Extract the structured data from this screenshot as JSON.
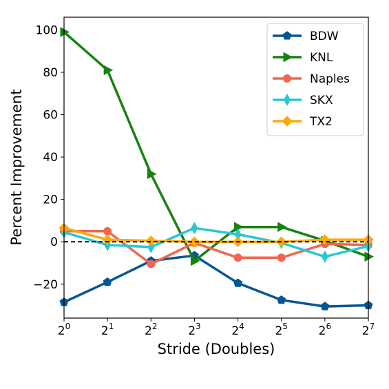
{
  "chart_data": {
    "type": "line",
    "title": "",
    "xlabel": "Stride (Doubles)",
    "ylabel": "Percent Improvement",
    "x": [
      0,
      1,
      2,
      3,
      4,
      5,
      6,
      7
    ],
    "x_tick_labels": [
      {
        "base": "2",
        "exp": "0"
      },
      {
        "base": "2",
        "exp": "1"
      },
      {
        "base": "2",
        "exp": "2"
      },
      {
        "base": "2",
        "exp": "3"
      },
      {
        "base": "2",
        "exp": "4"
      },
      {
        "base": "2",
        "exp": "5"
      },
      {
        "base": "2",
        "exp": "6"
      },
      {
        "base": "2",
        "exp": "7"
      }
    ],
    "xlim": [
      0,
      7
    ],
    "ylim": [
      -36,
      106
    ],
    "y_ticks": [
      -20,
      0,
      20,
      40,
      60,
      80,
      100
    ],
    "y_tick_labels": [
      "−20",
      "0",
      "20",
      "40",
      "60",
      "80",
      "100"
    ],
    "grid": false,
    "legend_position": "top-right",
    "reference_line": {
      "y": 0,
      "style": "dashed",
      "color": "#000000"
    },
    "series": [
      {
        "name": "BDW",
        "color": "#045693",
        "marker": "pentagon",
        "values": [
          -28.5,
          -19,
          -9,
          -6.5,
          -19.5,
          -27.5,
          -30.5,
          -30
        ]
      },
      {
        "name": "KNL",
        "color": "#16820f",
        "marker": "triangle-right",
        "values": [
          99,
          81,
          32,
          -9,
          7,
          7,
          0.5,
          -7
        ]
      },
      {
        "name": "Naples",
        "color": "#f2664f",
        "marker": "circle",
        "values": [
          5,
          5,
          -10.5,
          -0.5,
          -7.5,
          -7.5,
          -1,
          -1.5
        ]
      },
      {
        "name": "SKX",
        "color": "#29c7d1",
        "marker": "thin-diamond",
        "values": [
          4.5,
          -1.5,
          -2.5,
          6.5,
          3.5,
          -0.5,
          -7,
          -2
        ]
      },
      {
        "name": "TX2",
        "color": "#ffa80a",
        "marker": "diamond",
        "values": [
          6.5,
          1,
          0.5,
          0,
          0,
          0,
          1,
          1
        ]
      }
    ]
  }
}
